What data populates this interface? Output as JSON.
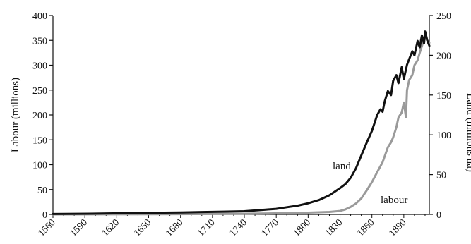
{
  "chart_data": {
    "type": "line",
    "xlabel": "",
    "xlim": [
      1560,
      1914
    ],
    "x_ticks": [
      "1560",
      "1590",
      "1620",
      "1650",
      "1680",
      "1710",
      "1740",
      "1770",
      "1800",
      "1830",
      "1860",
      "1890"
    ],
    "y_left": {
      "label": "Labour (millions)",
      "ylim": [
        0,
        400
      ],
      "ticks": [
        "0",
        "50",
        "100",
        "150",
        "200",
        "250",
        "300",
        "350",
        "400"
      ]
    },
    "y_right": {
      "label": "Land (millions ha)",
      "ylim": [
        0,
        250
      ],
      "ticks": [
        "0",
        "50",
        "100",
        "150",
        "200",
        "250"
      ]
    },
    "grid": false,
    "series": [
      {
        "name": "land",
        "axis": "right",
        "color": "#111111",
        "x": [
          1560,
          1600,
          1650,
          1680,
          1700,
          1720,
          1740,
          1760,
          1770,
          1780,
          1790,
          1800,
          1810,
          1820,
          1830,
          1835,
          1840,
          1845,
          1850,
          1855,
          1860,
          1865,
          1868,
          1870,
          1872,
          1875,
          1878,
          1880,
          1883,
          1885,
          1888,
          1890,
          1893,
          1895,
          1898,
          1900,
          1903,
          1905,
          1907,
          1909,
          1910,
          1912,
          1914
        ],
        "y": [
          0.5,
          1,
          2,
          2.5,
          3,
          3.5,
          4,
          6,
          7,
          9,
          11,
          14,
          18,
          24,
          33,
          38,
          46,
          58,
          74,
          90,
          105,
          125,
          132,
          129,
          142,
          155,
          150,
          168,
          175,
          165,
          185,
          170,
          188,
          195,
          205,
          200,
          218,
          210,
          225,
          215,
          230,
          219,
          212
        ]
      },
      {
        "name": "labour",
        "axis": "left",
        "color": "#9a9a9a",
        "x": [
          1560,
          1650,
          1700,
          1750,
          1780,
          1800,
          1820,
          1830,
          1835,
          1840,
          1845,
          1850,
          1855,
          1860,
          1865,
          1870,
          1875,
          1878,
          1880,
          1883,
          1885,
          1888,
          1890,
          1892,
          1893,
          1895,
          1898,
          1900,
          1903,
          1905,
          1908,
          1910,
          1912,
          1914
        ],
        "y": [
          0,
          0.3,
          0.8,
          1.5,
          2.5,
          3.5,
          5,
          7,
          10,
          15,
          22,
          32,
          48,
          65,
          85,
          105,
          135,
          145,
          155,
          175,
          195,
          205,
          225,
          195,
          250,
          270,
          280,
          300,
          310,
          325,
          345,
          355,
          350,
          345
        ]
      }
    ],
    "annotations": [
      {
        "text": "land",
        "series": "land"
      },
      {
        "text": "labour",
        "series": "labour"
      }
    ]
  }
}
